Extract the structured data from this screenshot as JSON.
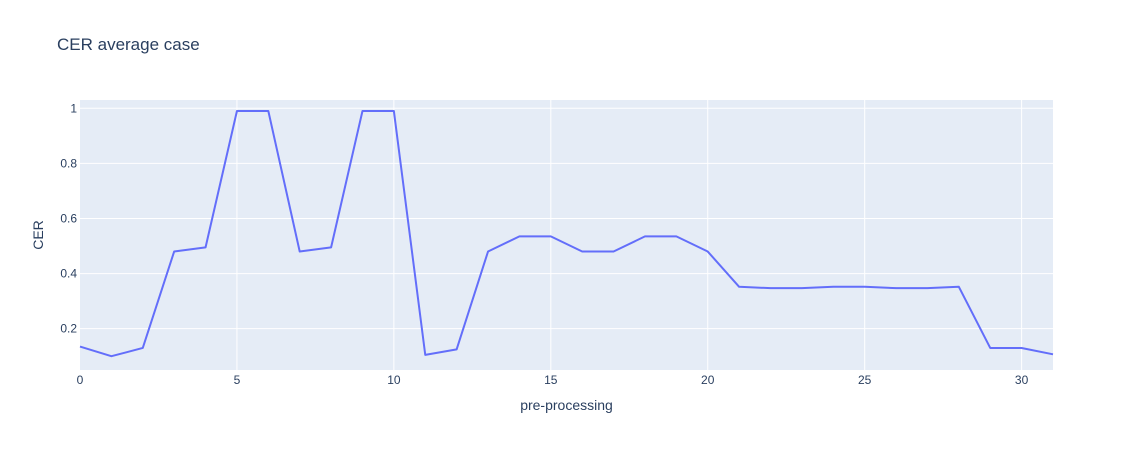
{
  "chart_data": {
    "type": "line",
    "title": "CER average case",
    "xlabel": "pre-processing",
    "ylabel": "CER",
    "xlim": [
      0,
      31
    ],
    "ylim": [
      0.05,
      1.03
    ],
    "xticks": [
      0,
      5,
      10,
      15,
      20,
      25,
      30
    ],
    "yticks": [
      0.2,
      0.4,
      0.6,
      0.8,
      1
    ],
    "grid": true,
    "background": "#e5ecf6",
    "line_color": "#636efa",
    "series": [
      {
        "x": [
          0,
          1,
          2,
          3,
          4,
          5,
          6,
          7,
          8,
          9,
          10,
          11,
          12,
          13,
          14,
          15,
          16,
          17,
          18,
          19,
          20,
          21,
          22,
          23,
          24,
          25,
          26,
          27,
          28,
          29,
          30,
          31
        ],
        "values": [
          0.135,
          0.1,
          0.13,
          0.48,
          0.495,
          0.99,
          0.99,
          0.48,
          0.495,
          0.99,
          0.99,
          0.105,
          0.125,
          0.48,
          0.535,
          0.535,
          0.48,
          0.48,
          0.535,
          0.535,
          0.48,
          0.352,
          0.347,
          0.347,
          0.352,
          0.352,
          0.347,
          0.347,
          0.352,
          0.13,
          0.13,
          0.107
        ]
      }
    ]
  }
}
